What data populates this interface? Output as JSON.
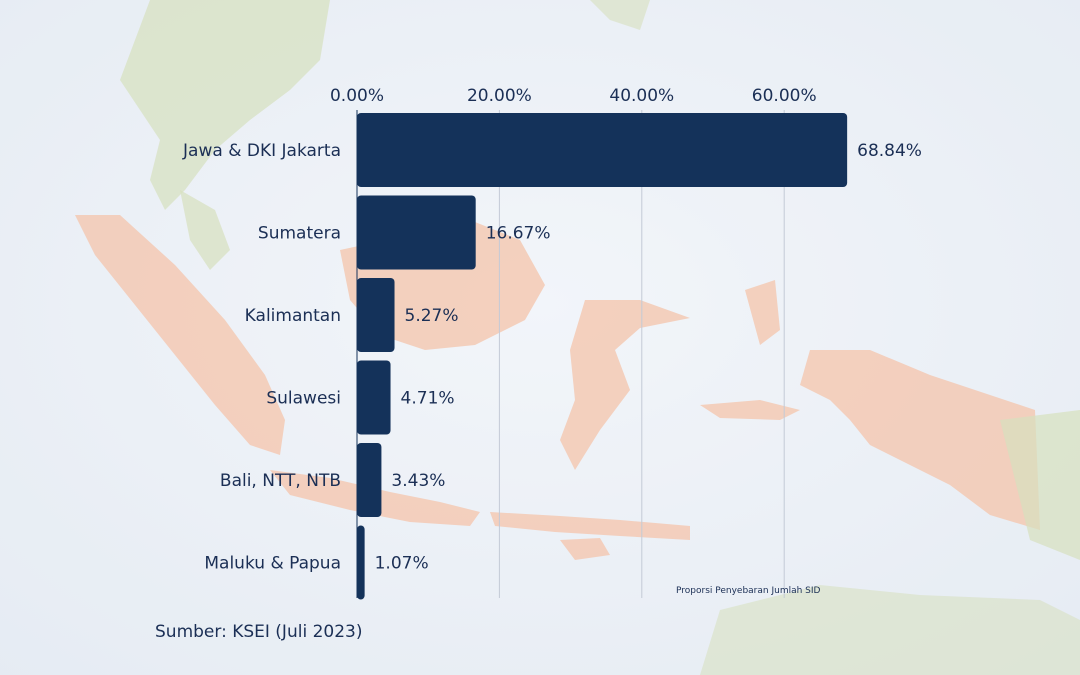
{
  "chart_data": {
    "type": "bar",
    "orientation": "horizontal",
    "title": "Proporsi Penyebaran Jumlah SID",
    "categories": [
      "Jawa & DKI Jakarta",
      "Sumatera",
      "Kalimantan",
      "Sulawesi",
      "Bali, NTT, NTB",
      "Maluku & Papua"
    ],
    "values": [
      68.84,
      16.67,
      5.27,
      4.71,
      3.43,
      1.07
    ],
    "value_labels": [
      "68.84%",
      "16.67%",
      "5.27%",
      "4.71%",
      "3.43%",
      "1.07%"
    ],
    "x_ticks": [
      "0.00%",
      "20.00%",
      "40.00%",
      "60.00%"
    ],
    "x_tick_values": [
      0,
      20,
      40,
      60
    ],
    "xlim": [
      0,
      70
    ],
    "axis_position": "top",
    "grid": true,
    "bar_color": "#14325a"
  },
  "footer": {
    "source": "Sumber: KSEI (Juli 2023)"
  }
}
